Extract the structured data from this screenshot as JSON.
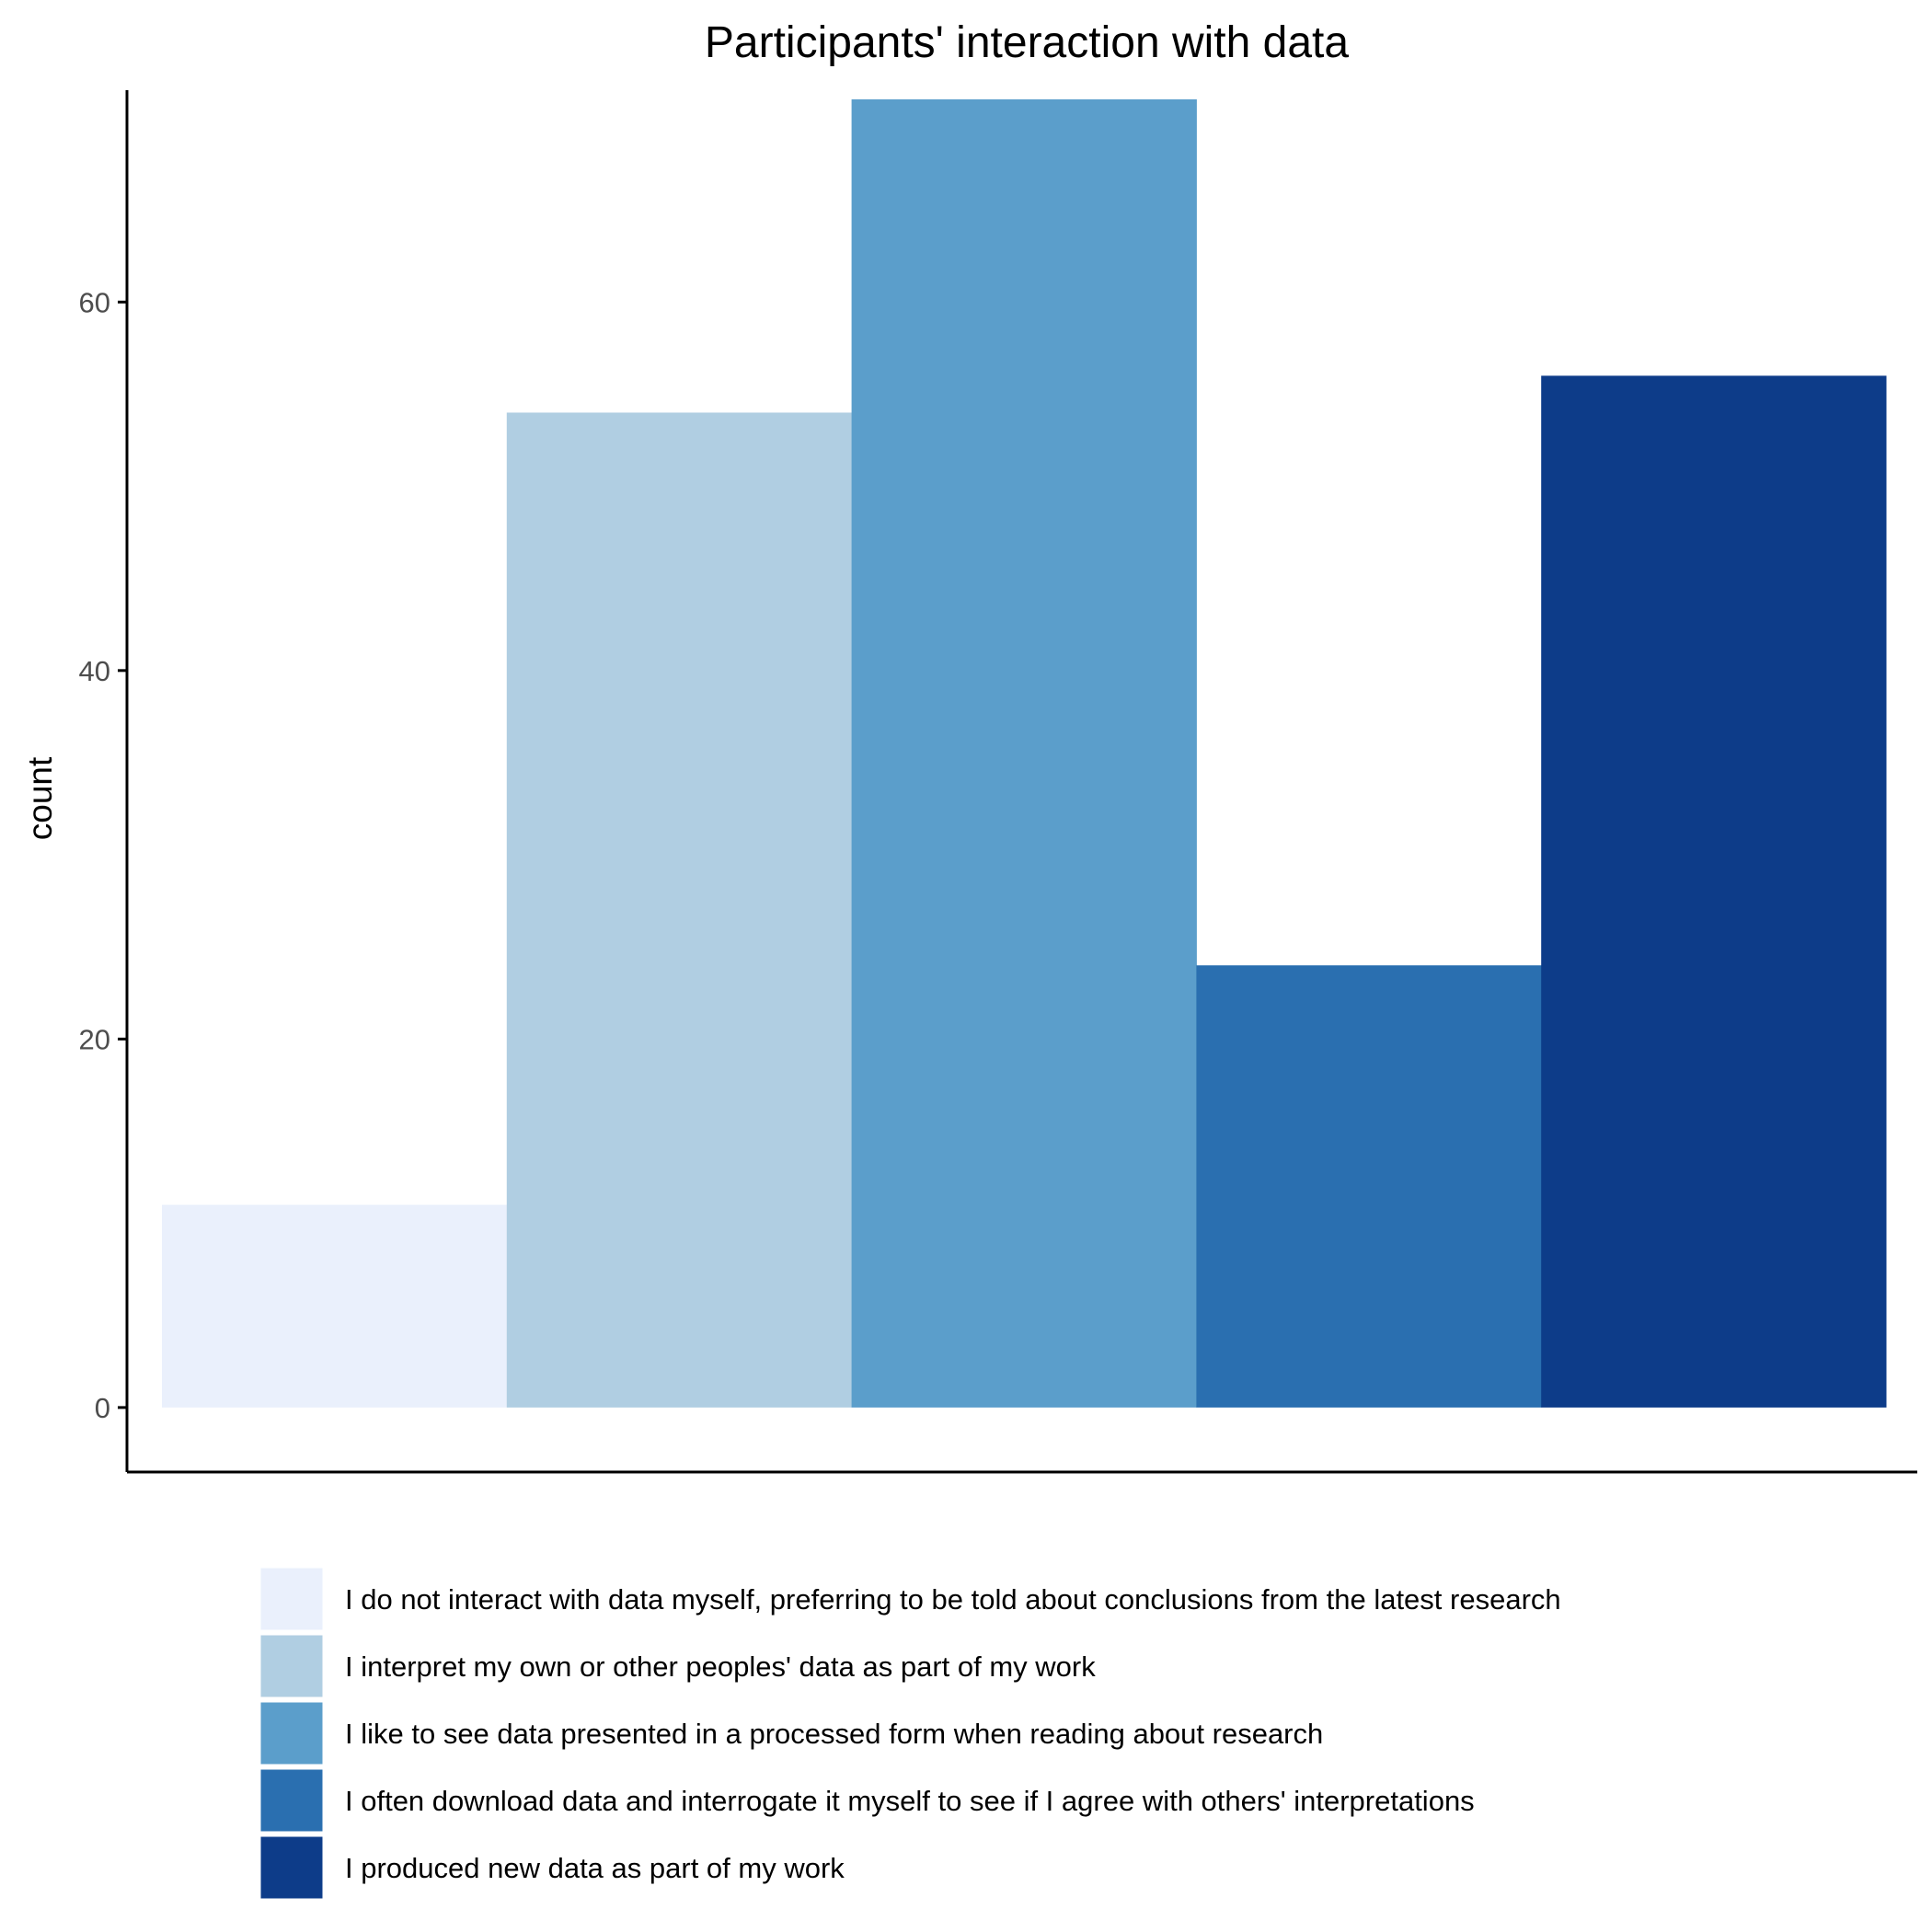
{
  "chart_data": {
    "type": "bar",
    "title": "Participants' interaction with data",
    "xlabel": "",
    "ylabel": "count",
    "ylim": [
      -3.5,
      71.5
    ],
    "yticks": [
      0,
      20,
      40,
      60
    ],
    "grid": false,
    "legend_position": "bottom",
    "categories": [
      "I do not interact with data myself, preferring to be told about conclusions from the latest research",
      "I interpret my own or other peoples' data as part of my work",
      "I like to see data presented in a processed form when reading about research",
      "I often download data and interrogate it myself to see if I agree with others' interpretations",
      "I produced new data as part of my work"
    ],
    "values": [
      11,
      54,
      71,
      24,
      56
    ],
    "colors": [
      "#eaf0fc",
      "#b0cee2",
      "#5b9ecb",
      "#2a6fb0",
      "#0d3c89"
    ]
  }
}
